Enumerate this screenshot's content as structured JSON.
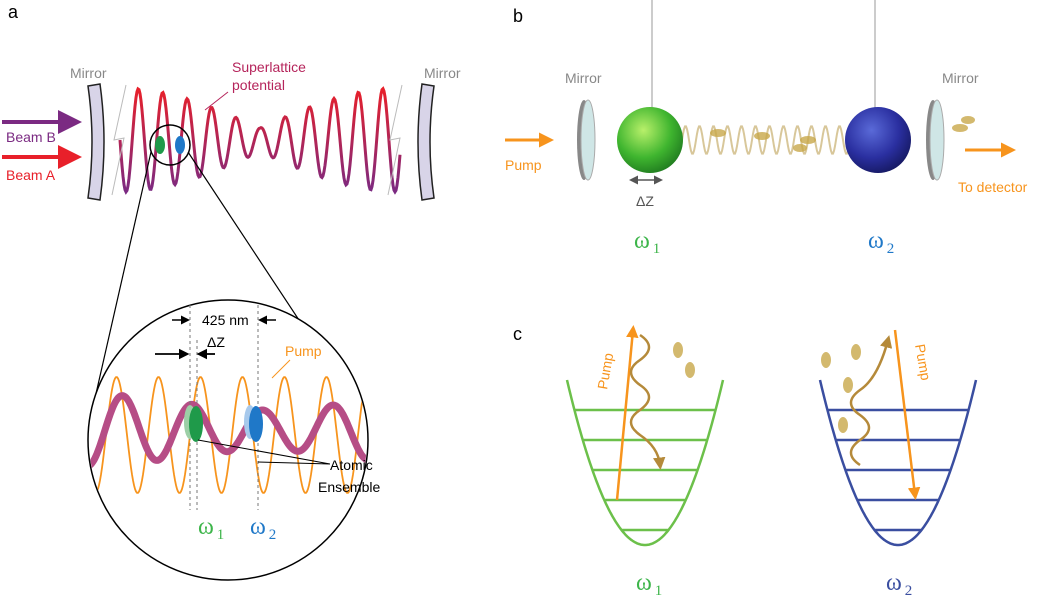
{
  "panel_a": {
    "label": "a",
    "mirror_left": "Mirror",
    "mirror_right": "Mirror",
    "superlattice": [
      "Superlattice",
      "potential"
    ],
    "beam_b": "Beam B",
    "beam_a": "Beam A",
    "spacing": "425 nm",
    "delta_z": "ΔZ",
    "pump": "Pump",
    "atomic_ensemble": [
      "Atomic",
      "Ensemble"
    ],
    "omega_1": {
      "symbol": "ω",
      "subscript": "1"
    },
    "omega_2": {
      "symbol": "ω",
      "subscript": "2"
    }
  },
  "panel_b": {
    "label": "b",
    "mirror_left": "Mirror",
    "mirror_right": "Mirror",
    "pump": "Pump",
    "to_detector": "To detector",
    "delta_z": "ΔZ",
    "omega_1": {
      "symbol": "ω",
      "subscript": "1"
    },
    "omega_2": {
      "symbol": "ω",
      "subscript": "2"
    }
  },
  "panel_c": {
    "label": "c",
    "pump_left": "Pump",
    "pump_right": "Pump",
    "omega_1": {
      "symbol": "ω",
      "subscript": "1"
    },
    "omega_2": {
      "symbol": "ω",
      "subscript": "2"
    }
  }
}
